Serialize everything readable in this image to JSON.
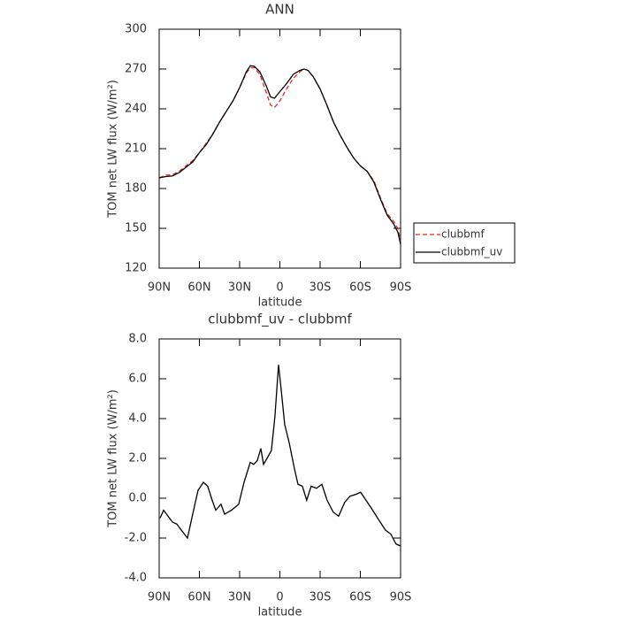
{
  "chart_data": [
    {
      "type": "line",
      "title": "ANN",
      "x_label": "latitude",
      "y_label": "TOM net LW flux (W/m²)",
      "x": [
        -90,
        -85,
        -80,
        -75,
        -70,
        -65,
        -60,
        -55,
        -50,
        -45,
        -40,
        -35,
        -30,
        -25,
        -22,
        -19,
        -15,
        -10,
        -7,
        -4,
        0,
        5,
        10,
        15,
        18,
        21,
        25,
        30,
        35,
        40,
        45,
        50,
        55,
        60,
        65,
        70,
        75,
        80,
        85,
        88,
        90
      ],
      "series": [
        {
          "name": "clubbmf",
          "color": "#e8261b",
          "linestyle": "dashed",
          "values": [
            188,
            190,
            190.5,
            193,
            197,
            201,
            207,
            214,
            221,
            230,
            238,
            246,
            256,
            267,
            271,
            271,
            266,
            252,
            243,
            241,
            246,
            255,
            263,
            268,
            270,
            269,
            264,
            255,
            243,
            230,
            220,
            211,
            203,
            197,
            193,
            186,
            173,
            161,
            155,
            150,
            140
          ]
        },
        {
          "name": "clubbmf_uv",
          "color": "#000000",
          "linestyle": "solid",
          "values": [
            188,
            189,
            189.5,
            192,
            196,
            200,
            207,
            213,
            221,
            230,
            238,
            246,
            256,
            268,
            272.5,
            272,
            268,
            257,
            249,
            248,
            253,
            259,
            266,
            269,
            270,
            269,
            264,
            255,
            243,
            230,
            220,
            211,
            203,
            197,
            193,
            185,
            172,
            160,
            153,
            147,
            138
          ]
        }
      ],
      "xlim": [
        -90,
        90
      ],
      "xticks": [
        {
          "value": -90,
          "label": "90N"
        },
        {
          "value": -60,
          "label": "60N"
        },
        {
          "value": -30,
          "label": "30N"
        },
        0,
        {
          "value": 30,
          "label": "30S"
        },
        {
          "value": 60,
          "label": "60S"
        },
        {
          "value": 90,
          "label": "90S"
        }
      ],
      "ylim": [
        120,
        300
      ],
      "yticks": [
        120,
        150,
        180,
        210,
        240,
        270,
        300
      ],
      "legend": "right"
    },
    {
      "type": "line",
      "title": "clubbmf_uv - clubbmf",
      "x_label": "latitude",
      "y_label": "TOM net LW flux (W/m²)",
      "x": [
        -89.3,
        -86.7,
        -83.4,
        -80.1,
        -76.8,
        -73.5,
        -68.9,
        -65,
        -61,
        -57,
        -53.8,
        -50.5,
        -47.8,
        -43.9,
        -41.2,
        -36,
        -30.7,
        -26.7,
        -22.1,
        -19.5,
        -16.8,
        -14.2,
        -12.2,
        -9.6,
        -6.3,
        -3.7,
        -1,
        0.9,
        3.6,
        6.9,
        10.8,
        13.5,
        16.8,
        20,
        23.3,
        27.3,
        31.3,
        35.2,
        39.8,
        43.8,
        48.4,
        52.3,
        56.9,
        60.2,
        64.2,
        68.2,
        74.8,
        78.7,
        82.7,
        86.6,
        90
      ],
      "series": [
        {
          "color": "#000000",
          "linestyle": "solid",
          "values": [
            -1.0,
            -0.6,
            -0.9,
            -1.2,
            -1.3,
            -1.6,
            -2.0,
            -0.8,
            0.4,
            0.8,
            0.6,
            -0.1,
            -0.6,
            -0.3,
            -0.8,
            -0.6,
            -0.3,
            0.8,
            1.8,
            1.7,
            1.9,
            2.5,
            1.7,
            2.0,
            2.4,
            4.1,
            6.7,
            5.5,
            3.7,
            2.8,
            1.5,
            0.7,
            0.6,
            -0.1,
            0.6,
            0.5,
            0.7,
            -0.1,
            -0.7,
            -0.9,
            -0.2,
            0.1,
            0.2,
            0.3,
            -0.1,
            -0.5,
            -1.2,
            -1.6,
            -1.8,
            -2.3,
            -2.4
          ]
        }
      ],
      "xlim": [
        -90,
        90
      ],
      "xticks": [
        {
          "value": -90,
          "label": "90N"
        },
        {
          "value": -60,
          "label": "60N"
        },
        {
          "value": -30,
          "label": "30N"
        },
        0,
        {
          "value": 30,
          "label": "30S"
        },
        {
          "value": 60,
          "label": "60S"
        },
        {
          "value": 90,
          "label": "90S"
        }
      ],
      "ylim": [
        -4,
        8
      ],
      "yticks": [
        {
          "value": -4,
          "label": "-4.0"
        },
        {
          "value": -2,
          "label": "-2.0"
        },
        {
          "value": 0,
          "label": "0.0"
        },
        {
          "value": 2,
          "label": "2.0"
        },
        {
          "value": 4,
          "label": "4.0"
        },
        {
          "value": 6,
          "label": "6.0"
        },
        {
          "value": 8,
          "label": "8.0"
        }
      ]
    }
  ]
}
